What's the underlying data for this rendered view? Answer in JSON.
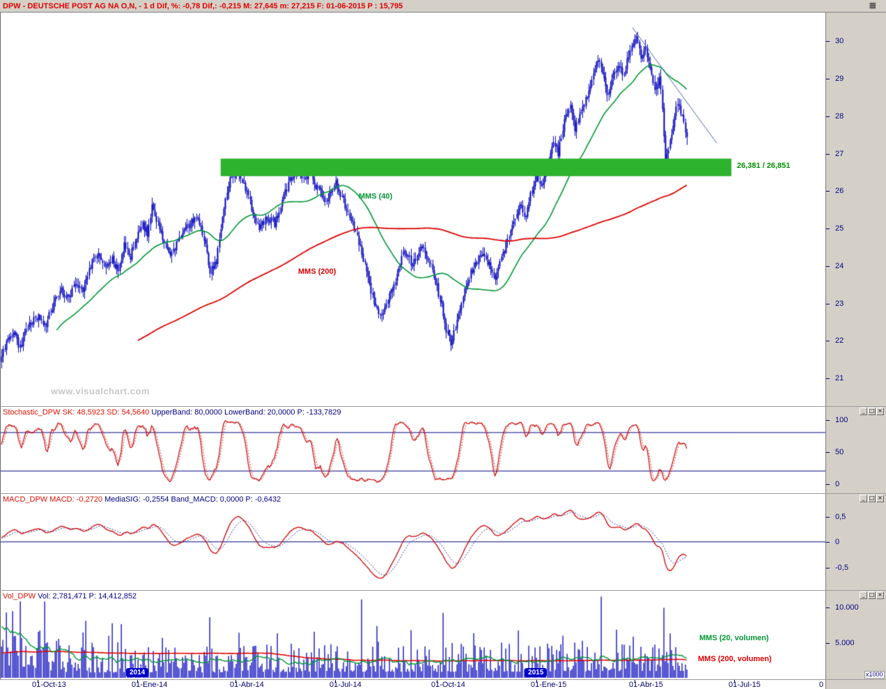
{
  "window": {
    "icon": "▦",
    "title_segments": [
      {
        "text": "DPW - DEUTSCHE POST AG NA O,N, -  1 d Dif, %: -0,78 Dif,: -0,215 M: 27,645 m: 27,215 F: 01-06-2015 P : 15,795",
        "color": "#e00000"
      }
    ],
    "buttons": [
      {
        "name": "minimize",
        "glyph": "_"
      },
      {
        "name": "maximize",
        "glyph": "□"
      },
      {
        "name": "close",
        "glyph": "×"
      }
    ]
  },
  "colors": {
    "chrome": "#d4d0c8",
    "axis_text": "#000080",
    "title_text": "#e00000",
    "candles": "#0000bb",
    "mms40": "#009635",
    "mms200": "#dd0000",
    "band": "#2eb32e",
    "band_label": "#009000",
    "trendline": "#4466aa",
    "stoch_sk": "#cc0000",
    "stoch_sd": "#c03030",
    "stoch_levels": "#000080",
    "macd_line": "#cc0000",
    "macd_signal": "#333399",
    "volume_bars": "#0000bb",
    "vol_mms20": "#009635",
    "vol_mms200": "#dd0000"
  },
  "panels": {
    "price": {
      "watermark": "www.visualchart.com",
      "mms40_label": "MMS (40)",
      "mms200_label": "MMS (200)",
      "band_label": "26,381 / 26,851"
    },
    "stochastic": {
      "header_segments": [
        {
          "text": "Stochastic_DPW ",
          "color": "#dd1100"
        },
        {
          "text": "SK: 48,5923 ",
          "color": "#dd1100"
        },
        {
          "text": "SD: 54,5640 ",
          "color": "#dd1100"
        },
        {
          "text": "UpperBand: 80,0000 ",
          "color": "#000080"
        },
        {
          "text": "LowerBand: 20,0000 ",
          "color": "#000080"
        },
        {
          "text": "P: -133,7829",
          "color": "#000080"
        }
      ]
    },
    "macd": {
      "header_segments": [
        {
          "text": "MACD_DPW ",
          "color": "#dd1100"
        },
        {
          "text": "MACD: -0,2720 ",
          "color": "#dd1100"
        },
        {
          "text": "MediaSIG: -0,2554 ",
          "color": "#000080"
        },
        {
          "text": "Band_MACD: 0,0000 ",
          "color": "#000080"
        },
        {
          "text": "P: -0,6432",
          "color": "#000080"
        }
      ]
    },
    "volume": {
      "header_segments": [
        {
          "text": "Vol_DPW ",
          "color": "#dd1100"
        },
        {
          "text": "Vol: 2,781,471 ",
          "color": "#000080"
        },
        {
          "text": "P: 14,412,852",
          "color": "#000080"
        }
      ],
      "mms20_label": "MMS (20, volumen)",
      "mms200_label": "MMS (200, volumen)",
      "unit_label": "x1000"
    }
  },
  "chart_data": {
    "type": "candlestick",
    "symbol": "DPW",
    "name": "DEUTSCHE POST AG NA O,N",
    "period": "1 d",
    "quote": {
      "change_pct": -0.78,
      "change": -0.215,
      "day_high": 27.645,
      "day_low": 27.215,
      "last": 27.43,
      "date": "01-06-2015",
      "p": 15.795
    },
    "x_axis": {
      "ticks": [
        [
          "01-Oct-13",
          24
        ],
        [
          "01-Ene-14",
          89
        ],
        [
          "01-Abr-14",
          153
        ],
        [
          "01-Jul-14",
          218
        ],
        [
          "01-Oct-14",
          284
        ],
        [
          "01-Ene-15",
          349
        ],
        [
          "01-Abr-15",
          413
        ],
        [
          "01-Jul-15",
          478
        ]
      ],
      "years": [
        [
          "2014",
          89
        ],
        [
          "2015",
          349
        ]
      ],
      "origin_label": "0"
    },
    "price_panel": {
      "ylim": [
        20.24,
        30.75
      ],
      "yticks": [
        [
          30,
          "30"
        ],
        [
          29,
          "29"
        ],
        [
          28,
          "28"
        ],
        [
          27,
          "27"
        ],
        [
          26,
          "26"
        ],
        [
          25,
          "25"
        ],
        [
          24,
          "24"
        ],
        [
          23,
          "23"
        ],
        [
          22,
          "22"
        ],
        [
          21,
          "21"
        ]
      ],
      "bars_total_slots": 538,
      "bars_data": 448,
      "pre_bars": 110,
      "pre_close_anchors": [
        [
          0,
          20.4
        ],
        [
          40,
          20.9
        ],
        [
          80,
          21.15
        ],
        [
          109,
          21.5
        ]
      ],
      "close_anchors": [
        [
          0,
          21.6
        ],
        [
          4,
          22.0
        ],
        [
          8,
          22.15
        ],
        [
          12,
          21.8
        ],
        [
          16,
          22.3
        ],
        [
          20,
          22.5
        ],
        [
          24,
          22.6
        ],
        [
          28,
          22.35
        ],
        [
          33,
          22.9
        ],
        [
          38,
          23.35
        ],
        [
          43,
          23.1
        ],
        [
          48,
          23.5
        ],
        [
          53,
          23.3
        ],
        [
          58,
          24.0
        ],
        [
          63,
          24.35
        ],
        [
          68,
          23.9
        ],
        [
          72,
          24.15
        ],
        [
          76,
          23.85
        ],
        [
          80,
          24.6
        ],
        [
          84,
          24.25
        ],
        [
          88,
          24.7
        ],
        [
          92,
          25.1
        ],
        [
          95,
          24.85
        ],
        [
          98,
          25.55
        ],
        [
          104,
          24.9
        ],
        [
          109,
          24.3
        ],
        [
          115,
          24.6
        ],
        [
          121,
          25.0
        ],
        [
          127,
          25.3
        ],
        [
          131,
          24.9
        ],
        [
          136,
          23.85
        ],
        [
          140,
          24.1
        ],
        [
          145,
          25.6
        ],
        [
          149,
          26.3
        ],
        [
          153,
          26.5
        ],
        [
          157,
          26.25
        ],
        [
          161,
          25.85
        ],
        [
          163,
          25.5
        ],
        [
          168,
          24.95
        ],
        [
          173,
          25.3
        ],
        [
          178,
          25.1
        ],
        [
          183,
          25.7
        ],
        [
          188,
          26.3
        ],
        [
          193,
          26.55
        ],
        [
          197,
          26.3
        ],
        [
          201,
          26.5
        ],
        [
          206,
          26.05
        ],
        [
          211,
          25.7
        ],
        [
          215,
          26.0
        ],
        [
          218,
          26.2
        ],
        [
          224,
          25.6
        ],
        [
          230,
          25.0
        ],
        [
          236,
          24.2
        ],
        [
          241,
          23.3
        ],
        [
          246,
          22.65
        ],
        [
          250,
          22.85
        ],
        [
          256,
          23.5
        ],
        [
          262,
          24.3
        ],
        [
          268,
          24.05
        ],
        [
          274,
          24.5
        ],
        [
          280,
          24.0
        ],
        [
          286,
          23.1
        ],
        [
          290,
          22.3
        ],
        [
          293,
          21.9
        ],
        [
          297,
          22.5
        ],
        [
          302,
          23.4
        ],
        [
          308,
          24.0
        ],
        [
          314,
          24.35
        ],
        [
          318,
          24.0
        ],
        [
          322,
          23.65
        ],
        [
          328,
          24.4
        ],
        [
          334,
          25.2
        ],
        [
          338,
          25.7
        ],
        [
          341,
          25.2
        ],
        [
          345,
          25.9
        ],
        [
          349,
          26.35
        ],
        [
          352,
          26.1
        ],
        [
          356,
          26.7
        ],
        [
          360,
          27.3
        ],
        [
          363,
          27.0
        ],
        [
          367,
          27.9
        ],
        [
          371,
          28.25
        ],
        [
          374,
          27.6
        ],
        [
          377,
          28.0
        ],
        [
          381,
          28.45
        ],
        [
          385,
          29.0
        ],
        [
          389,
          29.55
        ],
        [
          392,
          29.15
        ],
        [
          395,
          28.5
        ],
        [
          399,
          29.05
        ],
        [
          403,
          29.4
        ],
        [
          406,
          29.05
        ],
        [
          409,
          29.65
        ],
        [
          412,
          29.95
        ],
        [
          414,
          30.15
        ],
        [
          417,
          29.55
        ],
        [
          420,
          29.85
        ],
        [
          423,
          29.25
        ],
        [
          426,
          28.7
        ],
        [
          429,
          28.95
        ],
        [
          431,
          28.25
        ],
        [
          433,
          26.7
        ],
        [
          435,
          27.15
        ],
        [
          438,
          27.75
        ],
        [
          441,
          28.35
        ],
        [
          444,
          27.95
        ],
        [
          447,
          27.43
        ]
      ],
      "mms40_period": 40,
      "mms200_period": 200,
      "support_band": {
        "low": 26.381,
        "high": 26.851,
        "from_bar": 143,
        "to_frac": 0.886,
        "label": "26,381 / 26,851"
      },
      "trendline": {
        "from_frac": 0.766,
        "from_price": 30.35,
        "to_frac": 0.868,
        "to_price": 27.27
      }
    },
    "stochastic_panel": {
      "period": 14,
      "slowing": 3,
      "signal": 3,
      "upper_band": 80,
      "lower_band": 20,
      "sk": 48.5923,
      "sd": 54.564,
      "p": -133.7829,
      "yticks": [
        [
          100,
          "100"
        ],
        [
          50,
          "50"
        ],
        [
          0,
          "0"
        ]
      ]
    },
    "macd_panel": {
      "fast": 12,
      "slow": 26,
      "signal": 9,
      "macd": -0.272,
      "media_sig": -0.2554,
      "band_macd": 0.0,
      "p": -0.6432,
      "yticks": [
        [
          0.5,
          "0,5"
        ],
        [
          0,
          "0"
        ],
        [
          -0.5,
          "-0,5"
        ]
      ]
    },
    "volume_panel": {
      "vol": 2781471,
      "p": 14412852,
      "ymax": 12200,
      "yticks": [
        [
          10000,
          "10.000"
        ],
        [
          5000,
          "5.000"
        ]
      ],
      "mms20_period": 20,
      "mms200_period": 200,
      "pre_vol_anchors": [
        [
          0,
          2300
        ],
        [
          84,
          2400
        ],
        [
          88,
          7200
        ],
        [
          109,
          7200
        ]
      ],
      "base_anchors": [
        [
          0,
          4800
        ],
        [
          18,
          4400
        ],
        [
          30,
          3100
        ],
        [
          45,
          2200
        ],
        [
          110,
          2100
        ],
        [
          170,
          2300
        ],
        [
          240,
          2500
        ],
        [
          300,
          2400
        ],
        [
          380,
          2600
        ],
        [
          447,
          2800
        ]
      ],
      "spikes": [
        [
          12,
          10500
        ],
        [
          29,
          4900
        ],
        [
          36,
          5300
        ],
        [
          53,
          6200
        ],
        [
          59,
          5100
        ],
        [
          78,
          7800
        ],
        [
          105,
          5600
        ],
        [
          136,
          8200
        ],
        [
          155,
          6300
        ],
        [
          180,
          6000
        ],
        [
          204,
          6600
        ],
        [
          235,
          10800
        ],
        [
          245,
          7400
        ],
        [
          267,
          6900
        ],
        [
          288,
          9300
        ],
        [
          308,
          6100
        ],
        [
          337,
          6600
        ],
        [
          366,
          5900
        ],
        [
          391,
          11100
        ],
        [
          401,
          6500
        ],
        [
          412,
          5600
        ],
        [
          432,
          9500
        ],
        [
          436,
          6100
        ]
      ]
    }
  }
}
